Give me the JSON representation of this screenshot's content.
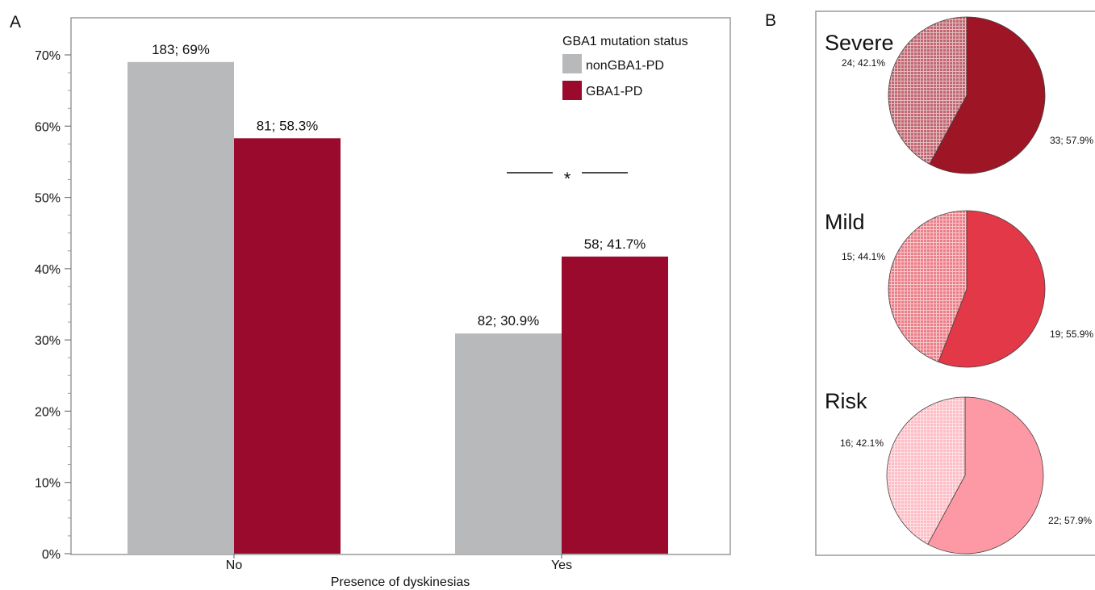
{
  "panel_labels": {
    "a": "A",
    "b": "B"
  },
  "colors": {
    "nonGBA1": "#b7b9ba",
    "GBA1": "#9a0a2d",
    "severe": "#9e1525",
    "mild": "#e23848",
    "risk": "#fd99a4"
  },
  "significance_marker": "*",
  "chart_data": [
    {
      "type": "bar",
      "xlabel": "Presence of dyskinesias",
      "ylabel": "",
      "categories": [
        "No",
        "Yes"
      ],
      "ylim": [
        0,
        0.7
      ],
      "yticks": [
        "0%",
        "10%",
        "20%",
        "30%",
        "40%",
        "50%",
        "60%",
        "70%"
      ],
      "grid": false,
      "legend": {
        "title": "GBA1 mutation status",
        "placement": "top-right"
      },
      "series": [
        {
          "name": "nonGBA1-PD",
          "values": [
            0.69,
            0.309
          ],
          "labels": [
            "183; 69%",
            "82; 30.9%"
          ]
        },
        {
          "name": "GBA1-PD",
          "values": [
            0.583,
            0.417
          ],
          "labels": [
            "81; 58.3%",
            "58; 41.7%"
          ]
        }
      ]
    },
    {
      "type": "pie",
      "title": "Severe",
      "slices": [
        {
          "value": 33,
          "percent": 57.9,
          "label": "33; 57.9%",
          "pattern": "solid"
        },
        {
          "value": 24,
          "percent": 42.1,
          "label": "24; 42.1%",
          "pattern": "hatched"
        }
      ]
    },
    {
      "type": "pie",
      "title": "Mild",
      "slices": [
        {
          "value": 19,
          "percent": 55.9,
          "label": "19; 55.9%",
          "pattern": "solid"
        },
        {
          "value": 15,
          "percent": 44.1,
          "label": "15; 44.1%",
          "pattern": "hatched"
        }
      ]
    },
    {
      "type": "pie",
      "title": "Risk",
      "slices": [
        {
          "value": 22,
          "percent": 57.9,
          "label": "22; 57.9%",
          "pattern": "solid"
        },
        {
          "value": 16,
          "percent": 42.1,
          "label": "16; 42.1%",
          "pattern": "hatched"
        }
      ]
    }
  ]
}
